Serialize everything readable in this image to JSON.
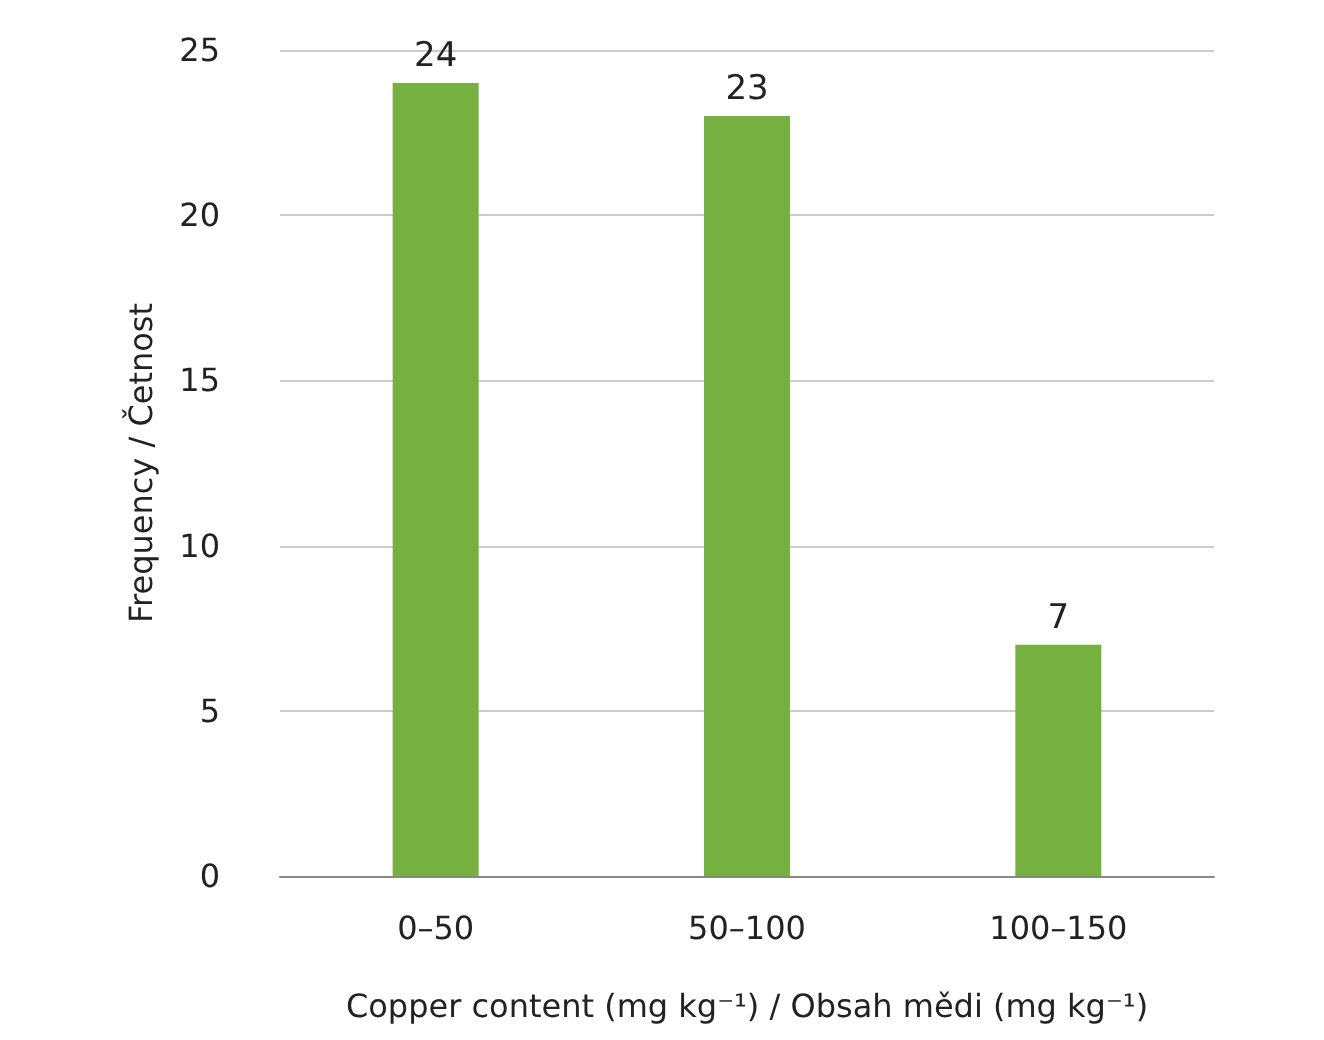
{
  "chart_data": {
    "type": "bar",
    "xlabel": "Copper content (mg kg⁻¹) / Obsah mědi (mg kg⁻¹)",
    "ylabel": "Frequency / Četnost",
    "categories": [
      "0–50",
      "50–100",
      "100–150"
    ],
    "values": [
      24,
      23,
      7
    ],
    "color": "#76b041",
    "ylim": [
      0,
      25
    ],
    "yticks": [
      0,
      5,
      10,
      15,
      20,
      25
    ],
    "grid": "y",
    "data_labels": true
  }
}
